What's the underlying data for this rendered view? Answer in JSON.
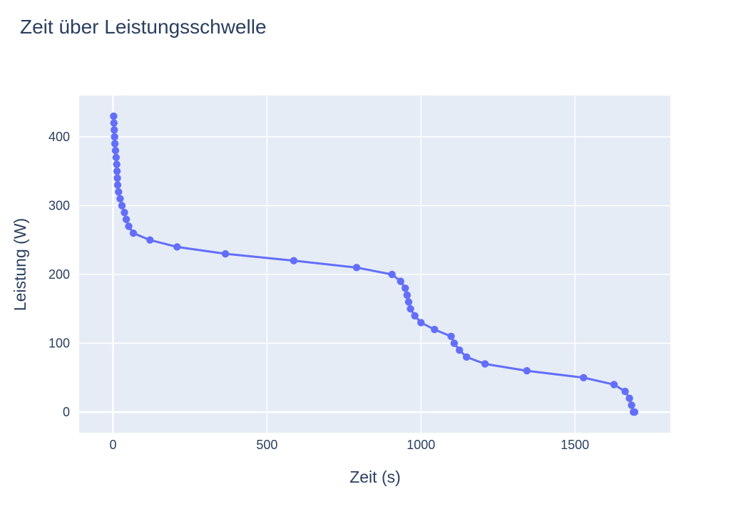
{
  "chart_data": {
    "type": "line",
    "title": "Zeit über Leistungsschwelle",
    "xlabel": "Zeit (s)",
    "ylabel": "Leistung (W)",
    "xlim": [
      -110,
      1810
    ],
    "ylim": [
      -30,
      460
    ],
    "x_ticks": [
      0,
      500,
      1000,
      1500
    ],
    "y_ticks": [
      0,
      100,
      200,
      300,
      400
    ],
    "grid": true,
    "legend": "none",
    "colors": {
      "series": "#636efa",
      "plot_background": "#e5ecf6",
      "grid": "#ffffff",
      "text": "#2a3f5f"
    },
    "series": [
      {
        "mode": "lines+markers",
        "x": [
          2,
          3,
          4,
          5,
          6,
          8,
          10,
          12,
          13,
          14,
          15,
          18,
          23,
          29,
          37,
          43,
          51,
          66,
          120,
          208,
          365,
          587,
          791,
          906,
          934,
          949,
          955,
          960,
          966,
          980,
          1000,
          1044,
          1098,
          1108,
          1125,
          1148,
          1208,
          1344,
          1528,
          1627,
          1663,
          1677,
          1684,
          1690,
          1694
        ],
        "y": [
          430,
          420,
          410,
          400,
          390,
          380,
          370,
          360,
          350,
          340,
          330,
          320,
          310,
          300,
          290,
          280,
          270,
          260,
          250,
          240,
          230,
          220,
          210,
          200,
          190,
          180,
          170,
          160,
          150,
          140,
          130,
          120,
          110,
          100,
          90,
          80,
          70,
          60,
          50,
          40,
          30,
          20,
          10,
          0,
          0
        ]
      }
    ]
  }
}
